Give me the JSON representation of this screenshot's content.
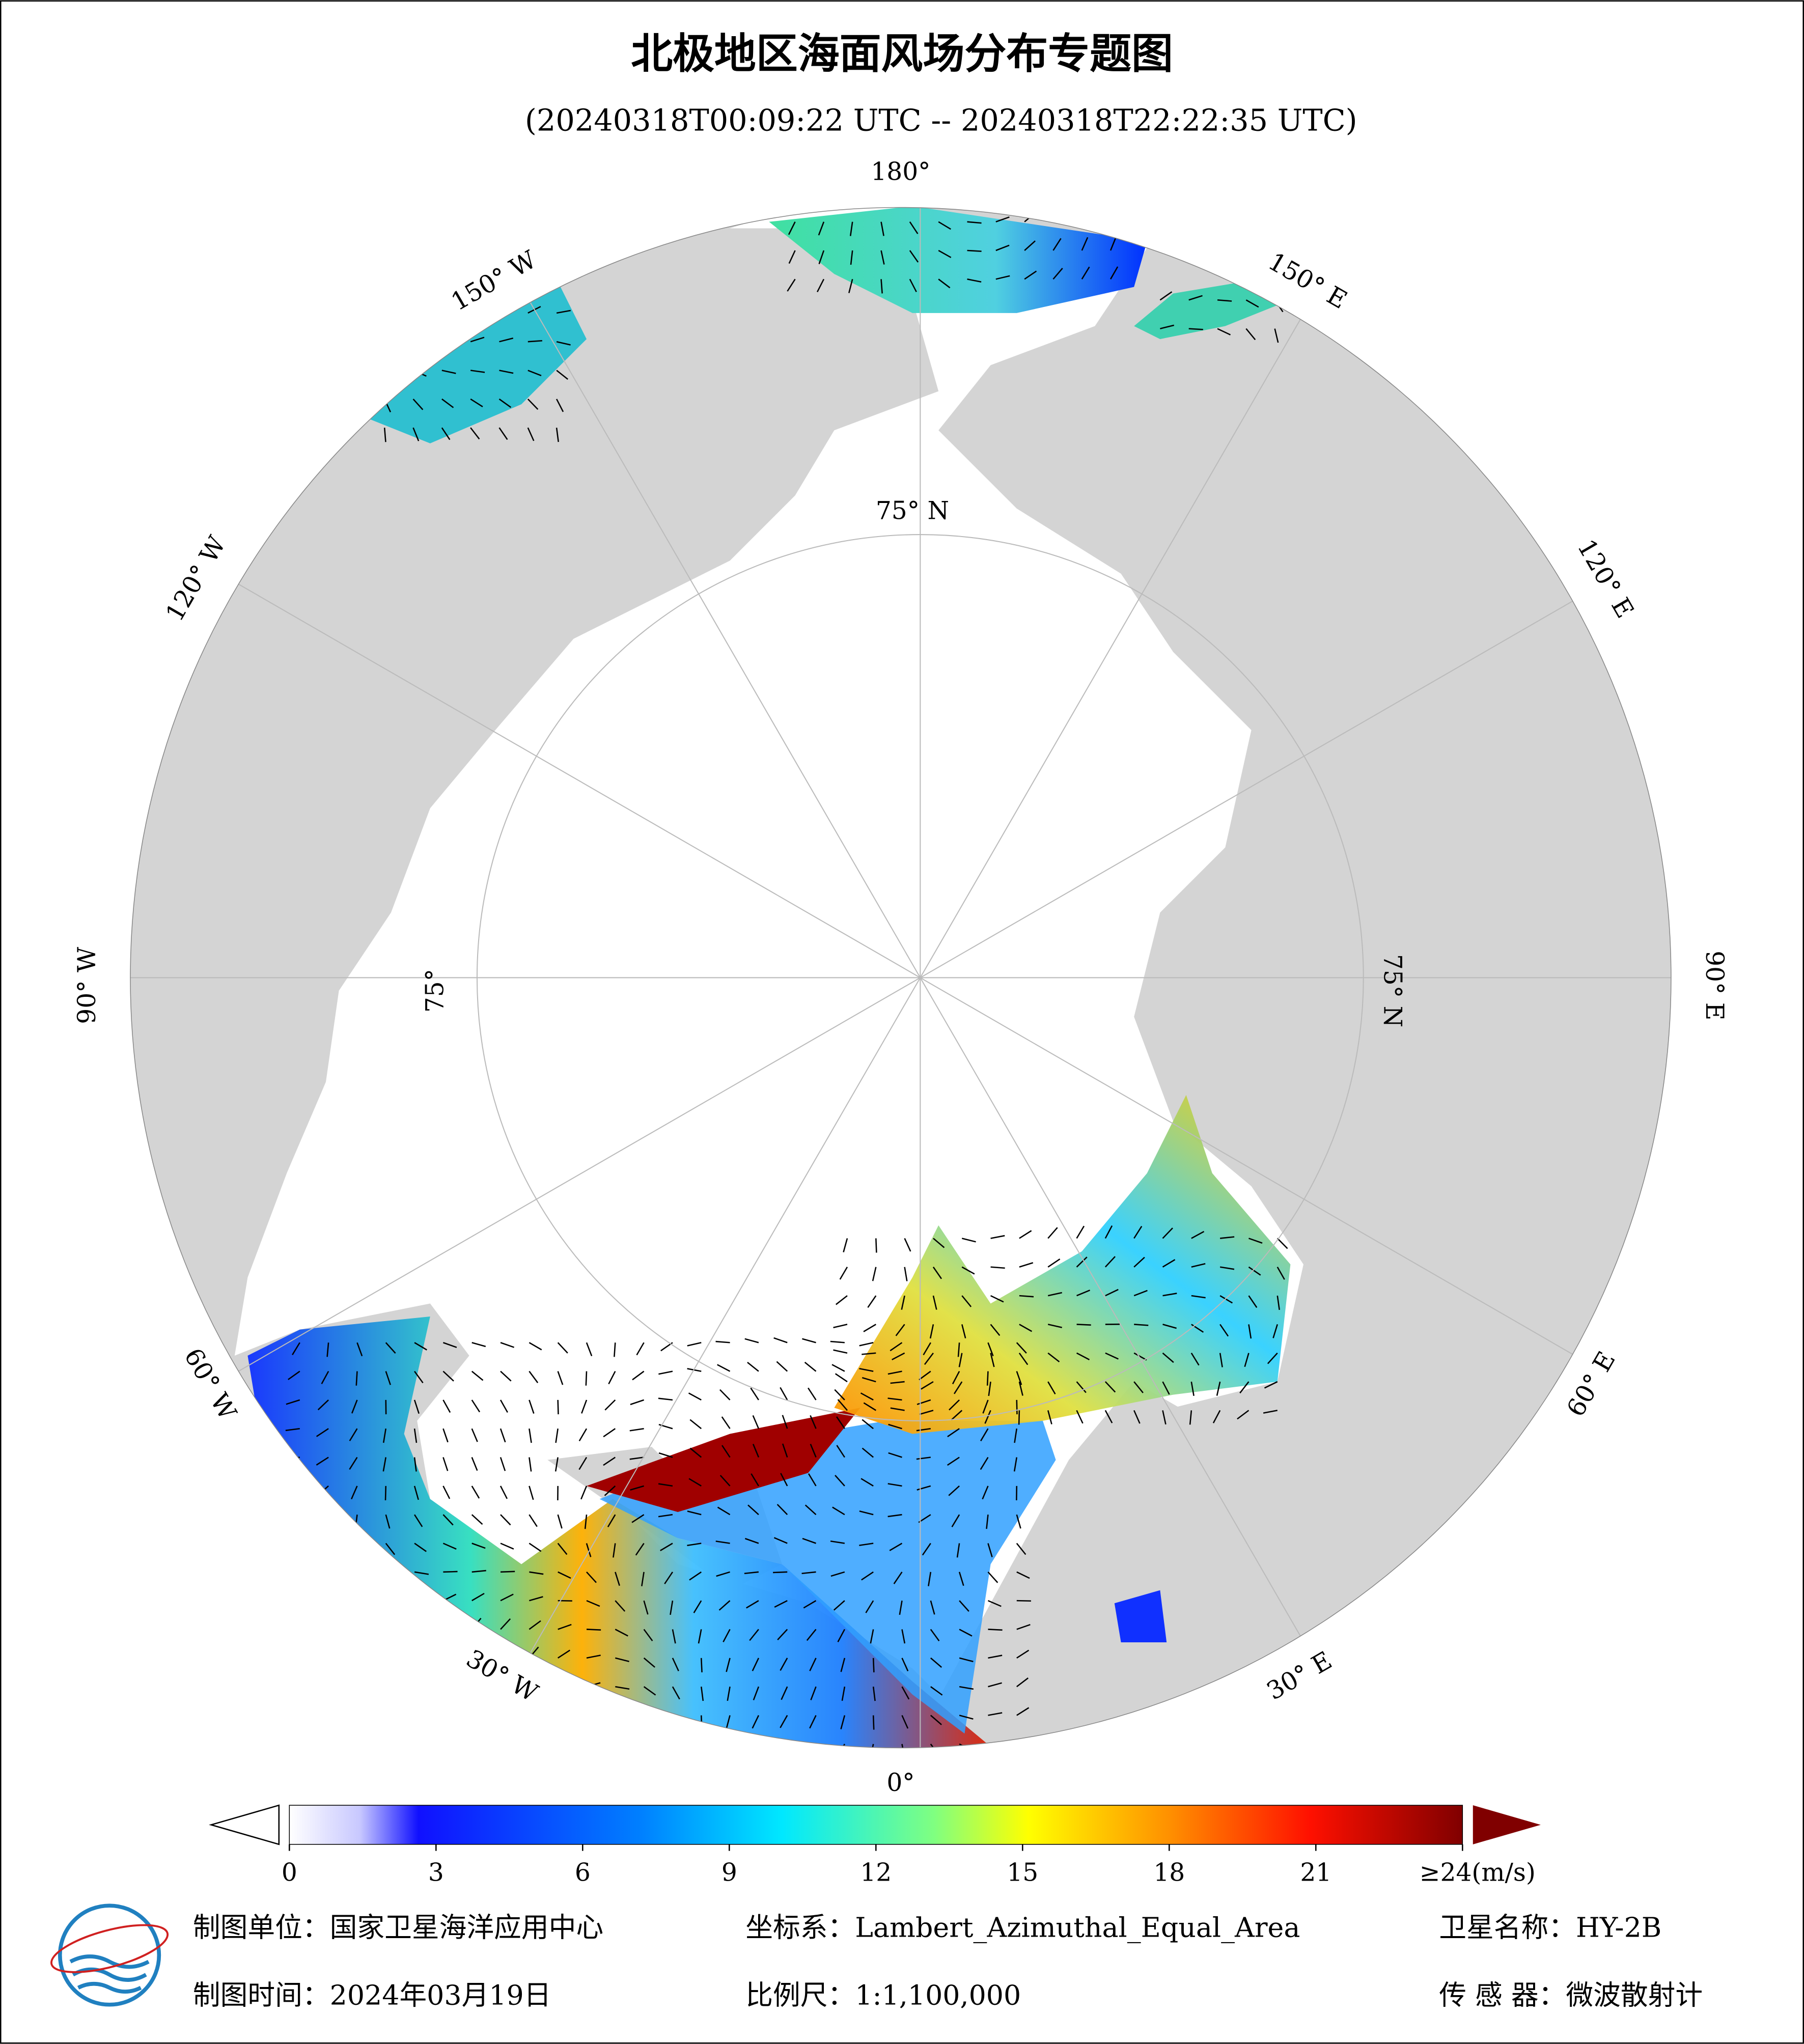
{
  "header": {
    "title": "北极地区海面风场分布专题图",
    "subtitle": "(20240318T00:09:22 UTC -- 20240318T22:22:35 UTC)"
  },
  "map": {
    "longitude_labels": [
      "180°",
      "150° E",
      "120° E",
      "90° E",
      "60° E",
      "30° E",
      "0°",
      "30° W",
      "60° W",
      "90° W",
      "120° W",
      "150° W"
    ],
    "latitude_labels": [
      "75° N",
      "75° N",
      "75°"
    ]
  },
  "colorbar": {
    "range": [
      0,
      24
    ],
    "ticks": [
      0,
      3,
      6,
      9,
      12,
      15,
      18,
      21,
      {
        "value": 24,
        "label": "≥24(m/s)"
      }
    ]
  },
  "footer": {
    "unit": "制图单位：国家卫星海洋应用中心",
    "crs": "坐标系：Lambert_Azimuthal_Equal_Area",
    "satellite": "卫星名称：HY-2B",
    "date": "制图时间：2024年03月19日",
    "scale": "比例尺：1:1,100,000",
    "sensor": "传 感 器：微波散射计"
  }
}
